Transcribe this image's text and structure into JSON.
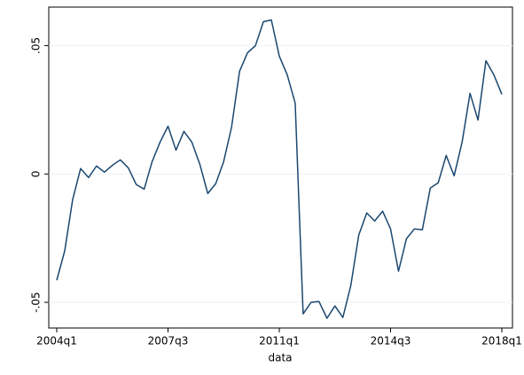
{
  "chart_data": {
    "type": "line",
    "x_label": "data",
    "categories": [
      "2004q1",
      null,
      null,
      null,
      null,
      null,
      null,
      null,
      null,
      null,
      null,
      null,
      null,
      null,
      "2007q3",
      null,
      null,
      null,
      null,
      null,
      null,
      null,
      null,
      null,
      null,
      null,
      null,
      null,
      "2011q1",
      null,
      null,
      null,
      null,
      null,
      null,
      null,
      null,
      null,
      null,
      null,
      null,
      null,
      "2014q3",
      null,
      null,
      null,
      null,
      null,
      null,
      null,
      null,
      null,
      null,
      null,
      null,
      null,
      "2018q1"
    ],
    "series": [
      {
        "name": "data",
        "color": "#1a476f",
        "values": [
          -0.0414,
          -0.03,
          -0.01,
          0.0021,
          -0.0014,
          0.0031,
          0.0007,
          0.0034,
          0.0055,
          0.0024,
          -0.0041,
          -0.0059,
          0.0048,
          0.0124,
          0.0186,
          0.0093,
          0.0166,
          0.0124,
          0.0038,
          -0.0076,
          -0.0038,
          0.0048,
          0.0183,
          0.04,
          0.0472,
          0.05,
          0.0593,
          0.06,
          0.0459,
          0.0386,
          0.0276,
          -0.0545,
          -0.05,
          -0.0497,
          -0.0562,
          -0.0514,
          -0.0559,
          -0.0434,
          -0.0238,
          -0.0152,
          -0.0183,
          -0.0145,
          -0.0214,
          -0.0379,
          -0.0252,
          -0.0214,
          -0.0217,
          -0.0055,
          -0.0034,
          0.0072,
          -0.0007,
          0.0124,
          0.0314,
          0.021,
          0.0441,
          0.0386,
          0.031
        ]
      }
    ],
    "ylim": [
      -0.06,
      0.065
    ],
    "yticks": [
      {
        "value": -0.05,
        "label": "-.05"
      },
      0,
      {
        "value": 0.05,
        "label": ".05"
      }
    ],
    "grid": true
  }
}
